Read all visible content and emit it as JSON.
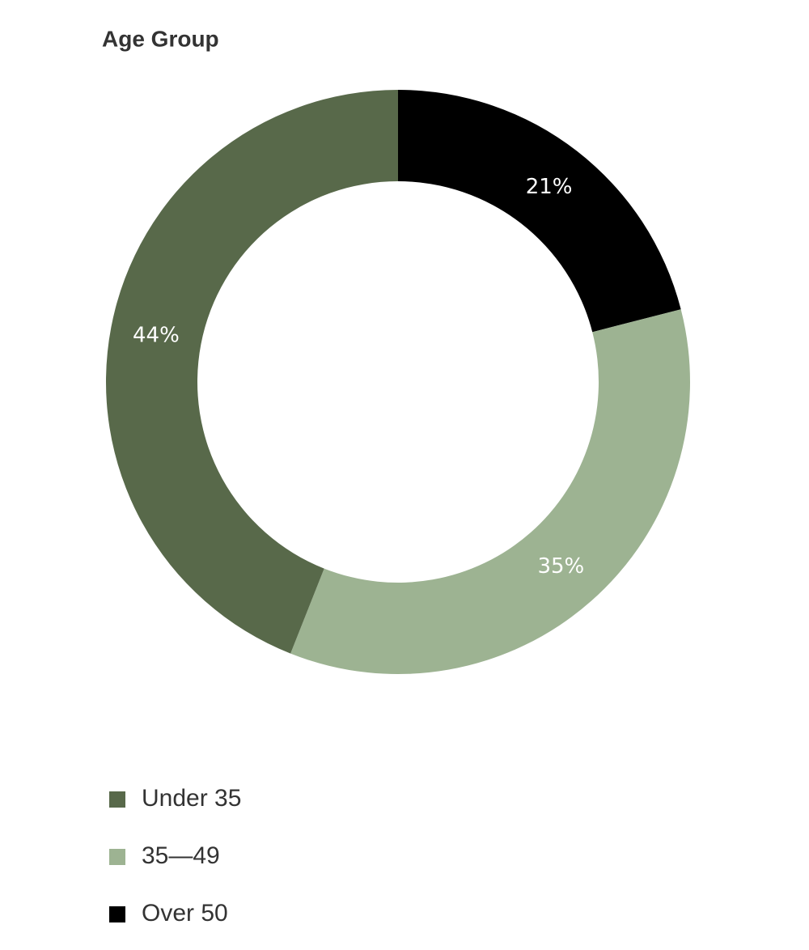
{
  "chart_data": {
    "type": "donut",
    "title": "Age Group",
    "categories": [
      "Under 35",
      "35—49",
      "Over 50"
    ],
    "values": [
      44,
      35,
      21
    ],
    "value_labels": [
      "44%",
      "35%",
      "21%"
    ],
    "colors": [
      "#58694a",
      "#9db392",
      "#000000"
    ]
  }
}
